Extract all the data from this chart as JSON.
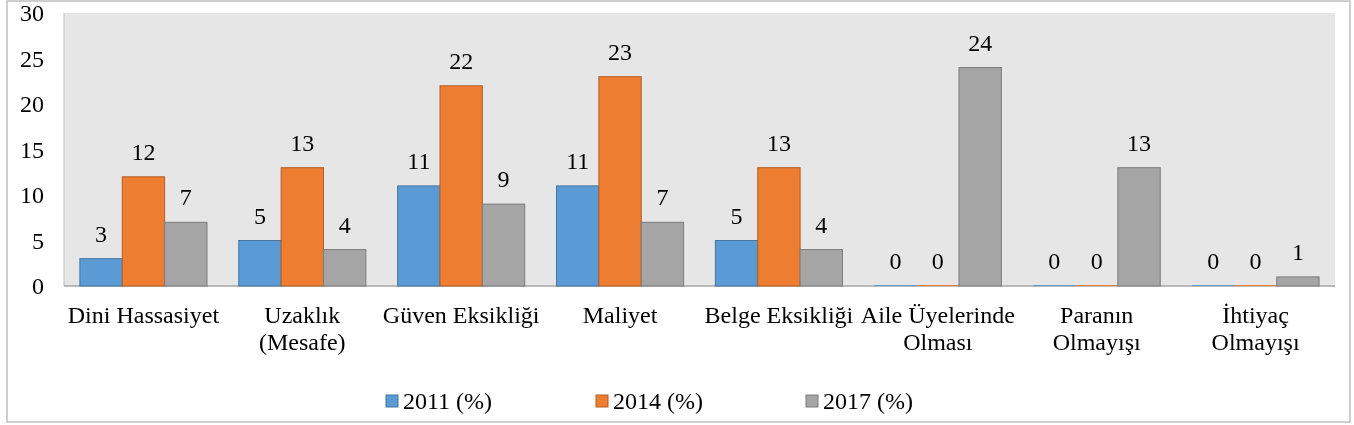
{
  "chart_data": {
    "type": "bar",
    "categories": [
      "Dini Hassasiyet",
      "Uzaklık (Mesafe)",
      "Güven Eksikliği",
      "Maliyet",
      "Belge Eksikliği",
      "Aile Üyelerinde Olması",
      "Paranın Olmayışı",
      "İhtiyaç Olmayışı"
    ],
    "series": [
      {
        "name": "2011 (%)",
        "color": "#5b9bd5",
        "values": [
          3,
          5,
          11,
          11,
          5,
          0,
          0,
          0
        ]
      },
      {
        "name": "2014 (%)",
        "color": "#ed7d31",
        "values": [
          12,
          13,
          22,
          23,
          13,
          0,
          0,
          0
        ]
      },
      {
        "name": "2017 (%)",
        "color": "#a5a5a5",
        "values": [
          7,
          4,
          9,
          7,
          4,
          24,
          13,
          1
        ]
      }
    ],
    "ylim": [
      0,
      30
    ],
    "yticks": [
      0,
      5,
      10,
      15,
      20,
      25,
      30
    ],
    "legend": "bottom",
    "data_labels": true
  }
}
